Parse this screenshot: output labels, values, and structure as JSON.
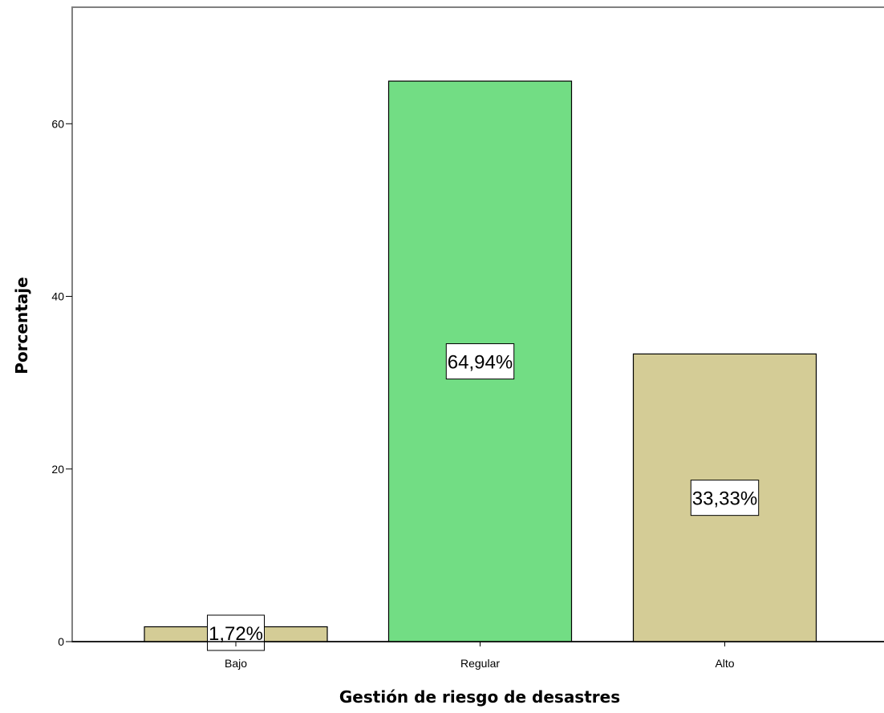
{
  "chart_data": {
    "type": "bar",
    "categories": [
      "Bajo",
      "Regular",
      "Alto"
    ],
    "values": [
      1.72,
      64.94,
      33.33
    ],
    "data_labels": [
      "1,72%",
      "64,94%",
      "33,33%"
    ],
    "bar_colors": [
      "#d4cc96",
      "#72dd84",
      "#d4cc96"
    ],
    "yticks": [
      0,
      20,
      40,
      60
    ],
    "ylim": [
      0,
      73.5
    ],
    "xlabel": "Gestión de riesgo de desastres",
    "ylabel": "Porcentaje",
    "grid": false,
    "legend": "none"
  }
}
